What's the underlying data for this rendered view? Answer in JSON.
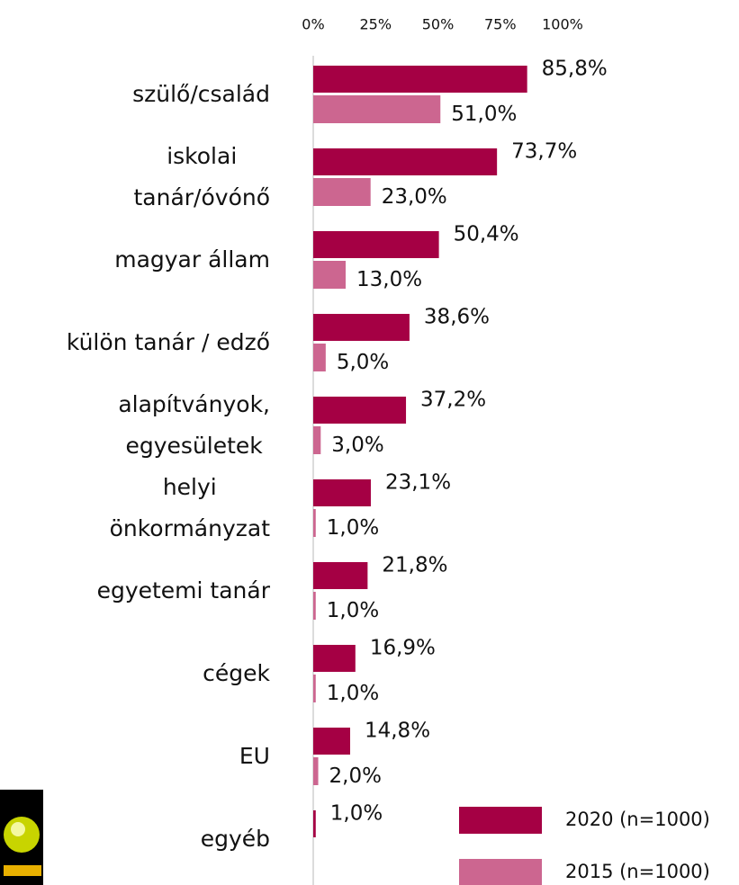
{
  "chart_data": {
    "type": "bar",
    "orientation": "horizontal",
    "categories": [
      "szülő/család",
      "iskolai\ntanár/óvónő",
      "magyar állam",
      "külön tanár / edző",
      "alapítványok,\negyesületek",
      "helyi\nönkormányzat",
      "egyetemi tanár",
      "cégek",
      "EU",
      "egyéb"
    ],
    "series": [
      {
        "name": "2020 (n=1000)",
        "color": "#a50044",
        "values": [
          85.8,
          73.7,
          50.4,
          38.6,
          37.2,
          23.1,
          21.8,
          16.9,
          14.8,
          1.0
        ],
        "value_labels": [
          "85,8%",
          "73,7%",
          "50,4%",
          "38,6%",
          "37,2%",
          "23,1%",
          "21,8%",
          "16,9%",
          "14,8%",
          "1,0%"
        ]
      },
      {
        "name": "2015 (n=1000)",
        "color": "#cc6690",
        "values": [
          51.0,
          23.0,
          13.0,
          5.0,
          3.0,
          1.0,
          1.0,
          1.0,
          2.0,
          null
        ],
        "value_labels": [
          "51,0%",
          "23,0%",
          "13,0%",
          "5,0%",
          "3,0%",
          "1,0%",
          "1,0%",
          "1,0%",
          "2,0%",
          null
        ]
      }
    ],
    "xlim": [
      0,
      100
    ],
    "xticks": [
      {
        "value": 0,
        "label": "0%"
      },
      {
        "value": 25,
        "label": "25%"
      },
      {
        "value": 50,
        "label": "50%"
      },
      {
        "value": 75,
        "label": "75%"
      },
      {
        "value": 100,
        "label": "100%"
      }
    ],
    "grid": false,
    "legend": "bottom-right"
  }
}
